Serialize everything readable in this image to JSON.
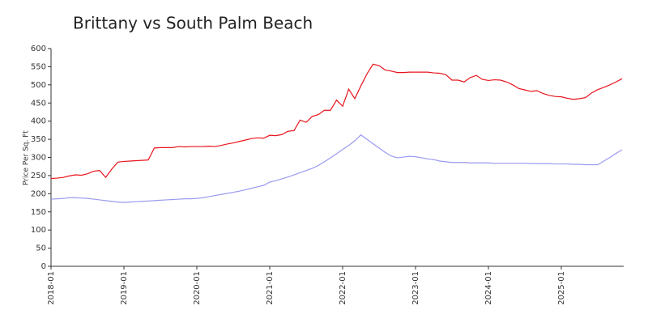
{
  "chart_data": {
    "type": "line",
    "title": "Brittany vs South Palm Beach",
    "y_label": "Price Per Sq. Ft",
    "categories": [
      "2018-01",
      null,
      null,
      null,
      null,
      null,
      null,
      null,
      null,
      null,
      null,
      null,
      "2019-01",
      null,
      null,
      null,
      null,
      null,
      null,
      null,
      null,
      null,
      null,
      null,
      "2020-01",
      null,
      null,
      null,
      null,
      null,
      null,
      null,
      null,
      null,
      null,
      null,
      "2021-01",
      null,
      null,
      null,
      null,
      null,
      null,
      null,
      null,
      null,
      null,
      null,
      "2022-01",
      null,
      null,
      null,
      null,
      null,
      null,
      null,
      null,
      null,
      null,
      null,
      "2023-01",
      null,
      null,
      null,
      null,
      null,
      null,
      null,
      null,
      null,
      null,
      null,
      "2024-01",
      null,
      null,
      null,
      null,
      null,
      null,
      null,
      null,
      null,
      null,
      null,
      "2025-01",
      null,
      null,
      null,
      null,
      null,
      null,
      null,
      null,
      null,
      null
    ],
    "series": [
      {
        "color": "#e8141c",
        "values": [
          242,
          243,
          245,
          249,
          252,
          251,
          255,
          262,
          264,
          245,
          268,
          287,
          289,
          290,
          291,
          292,
          293,
          326,
          327,
          327,
          327,
          330,
          329,
          330,
          330,
          330,
          331,
          330,
          333,
          337,
          340,
          344,
          348,
          352,
          354,
          353,
          361,
          360,
          363,
          372,
          374,
          403,
          397,
          413,
          418,
          430,
          430,
          458,
          441,
          488,
          462,
          497,
          530,
          557,
          553,
          541,
          538,
          534,
          534,
          535,
          535,
          535,
          535,
          533,
          532,
          528,
          513,
          513,
          508,
          520,
          526,
          515,
          512,
          514,
          513,
          508,
          500,
          490,
          486,
          482,
          484,
          476,
          471,
          468,
          467,
          463,
          460,
          462,
          465,
          478,
          487,
          493,
          500,
          508,
          517
        ]
      },
      {
        "color": "#9a9af0",
        "values": [
          185,
          186,
          187,
          189,
          189,
          188,
          187,
          185,
          183,
          181,
          179,
          177,
          176,
          177,
          178,
          179,
          180,
          181,
          182,
          183,
          184,
          185,
          186,
          186,
          187,
          189,
          192,
          195,
          198,
          201,
          204,
          207,
          211,
          215,
          219,
          223,
          232,
          236,
          241,
          246,
          252,
          258,
          264,
          270,
          278,
          288,
          299,
          310,
          322,
          333,
          346,
          362,
          350,
          338,
          326,
          314,
          304,
          299,
          301,
          303,
          302,
          299,
          296,
          294,
          290,
          288,
          286,
          286,
          286,
          285,
          285,
          285,
          285,
          284,
          284,
          284,
          284,
          284,
          284,
          283,
          283,
          283,
          283,
          282,
          282,
          282,
          281,
          281,
          280,
          280,
          280,
          290,
          300,
          311,
          321
        ]
      }
    ],
    "ylim": [
      0,
      600
    ],
    "yticks": [
      0,
      50,
      100,
      150,
      200,
      250,
      300,
      350,
      400,
      450,
      500,
      550,
      600
    ],
    "grid": false
  }
}
